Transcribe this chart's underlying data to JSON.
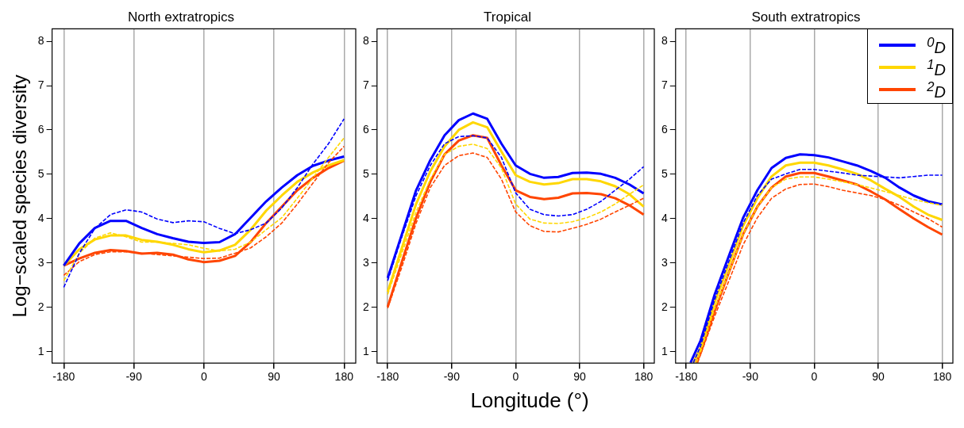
{
  "chart_data": [
    {
      "type": "line",
      "title": "North extratropics",
      "ylabel": "Log−scaled species diversity",
      "xlim": [
        -195,
        195
      ],
      "xticks": [
        -180,
        -90,
        0,
        90,
        180
      ],
      "ylim": [
        0.74,
        8.28
      ],
      "yticks": [
        1,
        2,
        3,
        4,
        5,
        6,
        7,
        8
      ],
      "grid": "x",
      "legend": false,
      "x": [
        -180,
        -160,
        -140,
        -120,
        -100,
        -80,
        -60,
        -40,
        -20,
        0,
        20,
        40,
        60,
        80,
        100,
        120,
        140,
        160,
        180
      ],
      "series": [
        {
          "color": "#0000ff",
          "line_style": "dashed",
          "values": [
            2.45,
            3.22,
            3.78,
            4.09,
            4.2,
            4.15,
            3.99,
            3.91,
            3.95,
            3.93,
            3.78,
            3.66,
            3.75,
            3.9,
            4.24,
            4.7,
            5.23,
            5.69,
            6.25
          ]
        },
        {
          "color": "#ffd700",
          "line_style": "dashed",
          "values": [
            2.6,
            3.22,
            3.56,
            3.68,
            3.59,
            3.47,
            3.47,
            3.44,
            3.41,
            3.33,
            3.27,
            3.31,
            3.47,
            3.75,
            4.02,
            4.46,
            4.92,
            5.38,
            5.82
          ]
        },
        {
          "color": "#ff4500",
          "line_style": "dashed",
          "values": [
            2.72,
            3.03,
            3.19,
            3.25,
            3.25,
            3.22,
            3.19,
            3.16,
            3.13,
            3.1,
            3.11,
            3.22,
            3.34,
            3.59,
            3.9,
            4.33,
            4.8,
            5.26,
            5.63
          ]
        },
        {
          "color": "#0000ff",
          "line_style": "solid",
          "values": [
            2.94,
            3.44,
            3.79,
            3.95,
            3.95,
            3.79,
            3.65,
            3.56,
            3.48,
            3.45,
            3.47,
            3.65,
            4.02,
            4.39,
            4.7,
            4.98,
            5.19,
            5.31,
            5.4
          ]
        },
        {
          "color": "#ffd700",
          "line_style": "solid",
          "values": [
            2.94,
            3.31,
            3.53,
            3.62,
            3.62,
            3.52,
            3.48,
            3.41,
            3.31,
            3.24,
            3.28,
            3.41,
            3.75,
            4.18,
            4.52,
            4.83,
            5.04,
            5.2,
            5.32
          ]
        },
        {
          "color": "#ff4500",
          "line_style": "solid",
          "values": [
            2.94,
            3.1,
            3.23,
            3.29,
            3.27,
            3.21,
            3.23,
            3.19,
            3.08,
            3.02,
            3.05,
            3.16,
            3.47,
            3.9,
            4.27,
            4.64,
            4.92,
            5.14,
            5.31
          ]
        }
      ]
    },
    {
      "type": "line",
      "title": "Tropical",
      "xlabel": "Longitude (°)",
      "xlim": [
        -195,
        195
      ],
      "xticks": [
        -180,
        -90,
        0,
        90,
        180
      ],
      "ylim": [
        0.74,
        8.28
      ],
      "yticks": [
        1,
        2,
        3,
        4,
        5,
        6,
        7,
        8
      ],
      "grid": "x",
      "legend": false,
      "x": [
        -180,
        -160,
        -140,
        -120,
        -100,
        -80,
        -60,
        -40,
        -20,
        0,
        20,
        40,
        60,
        80,
        100,
        120,
        140,
        160,
        180
      ],
      "series": [
        {
          "color": "#0000ff",
          "line_style": "dashed",
          "values": [
            2.6,
            3.59,
            4.52,
            5.2,
            5.69,
            5.85,
            5.87,
            5.82,
            5.38,
            4.58,
            4.21,
            4.09,
            4.06,
            4.09,
            4.21,
            4.39,
            4.64,
            4.89,
            5.17
          ]
        },
        {
          "color": "#ffd700",
          "line_style": "dashed",
          "values": [
            2.29,
            3.22,
            4.15,
            4.89,
            5.45,
            5.63,
            5.68,
            5.58,
            5.14,
            4.33,
            3.99,
            3.9,
            3.89,
            3.93,
            4.02,
            4.15,
            4.33,
            4.55,
            4.76
          ]
        },
        {
          "color": "#ff4500",
          "line_style": "dashed",
          "values": [
            1.98,
            2.91,
            3.9,
            4.7,
            5.2,
            5.42,
            5.48,
            5.38,
            4.89,
            4.15,
            3.84,
            3.71,
            3.7,
            3.78,
            3.87,
            3.99,
            4.15,
            4.3,
            4.46
          ]
        },
        {
          "color": "#0000ff",
          "line_style": "solid",
          "values": [
            2.66,
            3.65,
            4.64,
            5.32,
            5.88,
            6.22,
            6.37,
            6.25,
            5.69,
            5.2,
            5.01,
            4.92,
            4.94,
            5.03,
            5.04,
            5.01,
            4.92,
            4.77,
            4.57
          ]
        },
        {
          "color": "#ffd700",
          "line_style": "solid",
          "values": [
            2.35,
            3.34,
            4.33,
            5.07,
            5.63,
            6.0,
            6.17,
            6.06,
            5.51,
            4.98,
            4.83,
            4.77,
            4.8,
            4.89,
            4.89,
            4.84,
            4.73,
            4.55,
            4.27
          ]
        },
        {
          "color": "#ff4500",
          "line_style": "solid",
          "values": [
            2.01,
            3.03,
            4.02,
            4.83,
            5.45,
            5.76,
            5.88,
            5.82,
            5.2,
            4.64,
            4.49,
            4.44,
            4.47,
            4.57,
            4.58,
            4.55,
            4.46,
            4.3,
            4.09
          ]
        }
      ]
    },
    {
      "type": "line",
      "title": "South extratropics",
      "xlim": [
        -195,
        195
      ],
      "xticks": [
        -180,
        -90,
        0,
        90,
        180
      ],
      "ylim": [
        0.74,
        8.28
      ],
      "yticks": [
        1,
        2,
        3,
        4,
        5,
        6,
        7,
        8
      ],
      "grid": "x",
      "legend": "top right",
      "series": [
        {
          "color": "#0000ff",
          "line_style": "dashed",
          "x": [
            -170,
            -160,
            -140,
            -120,
            -100,
            -80,
            -60,
            -40,
            -20,
            0,
            20,
            40,
            60,
            80,
            100,
            120,
            140,
            160,
            180
          ],
          "values": [
            0.75,
            1.12,
            2.17,
            3.04,
            3.9,
            4.52,
            4.89,
            5.01,
            5.11,
            5.11,
            5.07,
            5.03,
            4.98,
            4.96,
            4.94,
            4.92,
            4.95,
            4.98,
            4.98
          ]
        },
        {
          "color": "#ffd700",
          "line_style": "dashed",
          "x": [
            -166,
            -160,
            -140,
            -120,
            -100,
            -80,
            -60,
            -40,
            -20,
            0,
            20,
            40,
            60,
            80,
            100,
            120,
            140,
            160,
            180
          ],
          "values": [
            0.75,
            0.99,
            1.98,
            2.79,
            3.65,
            4.27,
            4.7,
            4.89,
            4.94,
            4.94,
            4.89,
            4.83,
            4.77,
            4.69,
            4.61,
            4.52,
            4.43,
            4.36,
            4.3
          ]
        },
        {
          "color": "#ff4500",
          "line_style": "dashed",
          "x": [
            -164,
            -160,
            -140,
            -120,
            -100,
            -80,
            -60,
            -40,
            -20,
            0,
            20,
            40,
            60,
            80,
            100,
            120,
            140,
            160,
            180
          ],
          "values": [
            0.75,
            0.93,
            1.8,
            2.6,
            3.41,
            4.02,
            4.46,
            4.67,
            4.77,
            4.78,
            4.72,
            4.64,
            4.58,
            4.52,
            4.43,
            4.3,
            4.15,
            4.0,
            3.81
          ]
        },
        {
          "name": "$^{0}$D",
          "color": "#0000ff",
          "line_style": "solid",
          "x": [
            -174,
            -160,
            -140,
            -120,
            -100,
            -80,
            -60,
            -40,
            -20,
            0,
            20,
            40,
            60,
            80,
            100,
            120,
            140,
            160,
            180
          ],
          "values": [
            0.75,
            1.24,
            2.29,
            3.16,
            4.02,
            4.64,
            5.14,
            5.37,
            5.45,
            5.43,
            5.38,
            5.29,
            5.2,
            5.07,
            4.92,
            4.7,
            4.52,
            4.39,
            4.32
          ]
        },
        {
          "name": "$^{1}$D",
          "color": "#ffd700",
          "line_style": "solid",
          "x": [
            -170,
            -160,
            -140,
            -120,
            -100,
            -80,
            -60,
            -40,
            -20,
            0,
            20,
            40,
            60,
            80,
            100,
            120,
            140,
            160,
            180
          ],
          "values": [
            0.75,
            1.09,
            2.11,
            2.97,
            3.84,
            4.46,
            4.95,
            5.2,
            5.26,
            5.26,
            5.2,
            5.11,
            5.01,
            4.86,
            4.67,
            4.49,
            4.27,
            4.09,
            3.97
          ]
        },
        {
          "name": "$^{2}$D",
          "color": "#ff4500",
          "line_style": "solid",
          "x": [
            -166,
            -160,
            -140,
            -120,
            -100,
            -80,
            -60,
            -40,
            -20,
            0,
            20,
            40,
            60,
            80,
            100,
            120,
            140,
            160,
            180
          ],
          "values": [
            0.75,
            0.96,
            1.92,
            2.79,
            3.65,
            4.27,
            4.7,
            4.95,
            5.03,
            5.03,
            4.95,
            4.86,
            4.77,
            4.61,
            4.43,
            4.21,
            4.0,
            3.81,
            3.64
          ]
        }
      ]
    }
  ]
}
